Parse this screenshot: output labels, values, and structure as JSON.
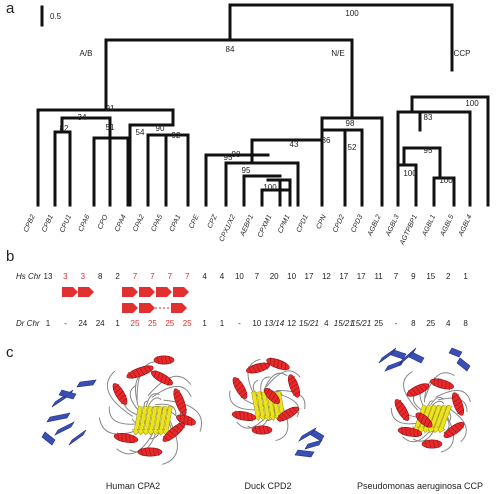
{
  "panels": {
    "a": "a",
    "b": "b",
    "c": "c"
  },
  "scale_bar_label": "0.5",
  "clade_labels": {
    "ab": "A/B",
    "ne": "N/E",
    "ccp": "CCP"
  },
  "bootstrap": {
    "root": "100",
    "ab": "84",
    "ne_ccp": "",
    "ab_a": "91",
    "b_inner": "34",
    "cpa_pair1": "82",
    "cpa_pair2": "51",
    "cpa_grp": "90",
    "cpa_a4": "54",
    "cpa_a5": "92",
    "ne": "98",
    "ne_sub": "43",
    "ne_a": "98",
    "ne_b": "95",
    "ne_c": "95",
    "ne_d": "100",
    "ne_e": "86",
    "ne_f": "52",
    "ccp": "100",
    "ccp_a": "83",
    "ccp_b": "95",
    "ccp_c": "100",
    "ccp_d": "100"
  },
  "leaves": [
    "CPB2",
    "CPB1",
    "CPU1",
    "CPA6",
    "CPO",
    "CPA4",
    "CPA2",
    "CPA5",
    "CPA1",
    "CPE",
    "CPZ",
    "CPX1/X2",
    "AEBP1",
    "CPXM1",
    "CPM1",
    "CPD1",
    "CPN",
    "CPD2",
    "CPD3",
    "AGBL2",
    "AGBL3",
    "AGTPBP1",
    "AGBL1",
    "AGBL5",
    "AGBL4"
  ],
  "hs_label": "Hs Chr",
  "dr_label": "Dr Chr",
  "hs_chr": [
    "13",
    "3",
    "3",
    "8",
    "2",
    "7",
    "7",
    "7",
    "7",
    "4",
    "4",
    "10",
    "7",
    "20",
    "10",
    "17",
    "12",
    "17",
    "17",
    "11",
    "7",
    "9",
    "15",
    "2",
    "1"
  ],
  "dr_chr": [
    "1",
    "-",
    "24",
    "24",
    "1",
    "25",
    "25",
    "25",
    "25",
    "1",
    "1",
    "-",
    "10",
    "13/14",
    "12",
    "15/21",
    "4",
    "15/21",
    "15/21",
    "25",
    "-",
    "8",
    "25",
    "4",
    "8"
  ],
  "hs_red_index": [
    1,
    2,
    5,
    6,
    7,
    8
  ],
  "dr_red_index": [
    5,
    6,
    7,
    8
  ],
  "structure_captions": [
    "Human CPA2",
    "Duck CPD2",
    "Pseudomonas aeruginosa CCP"
  ],
  "colors": {
    "helix": "#e8282a",
    "strand": "#ece31a",
    "blue_domain": "#3a4fb4",
    "coil": "#888888",
    "arrow": "#e23030"
  }
}
